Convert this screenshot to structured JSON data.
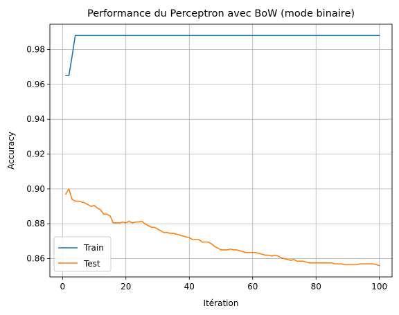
{
  "chart_data": {
    "type": "line",
    "title": "Performance du Perceptron avec BoW (mode binaire)",
    "xlabel": "Itération",
    "ylabel": "Accuracy",
    "xlim": [
      -4,
      104
    ],
    "ylim": [
      0.8495,
      0.9945
    ],
    "xticks": [
      0,
      20,
      40,
      60,
      80,
      100
    ],
    "xtick_labels": [
      "0",
      "20",
      "40",
      "60",
      "80",
      "100"
    ],
    "yticks": [
      0.86,
      0.88,
      0.9,
      0.92,
      0.94,
      0.96,
      0.98
    ],
    "ytick_labels": [
      "0.86",
      "0.88",
      "0.90",
      "0.92",
      "0.94",
      "0.96",
      "0.98"
    ],
    "grid": true,
    "legend_position": "lower-left",
    "series": [
      {
        "name": "Train",
        "color": "#1f77b4",
        "x": [
          1,
          2,
          3,
          4,
          100
        ],
        "y": [
          0.965,
          0.965,
          0.976,
          0.988,
          0.988
        ]
      },
      {
        "name": "Test",
        "color": "#ff7f0e",
        "x": [
          1,
          2,
          3,
          4,
          5,
          6,
          7,
          8,
          9,
          10,
          11,
          12,
          13,
          14,
          15,
          16,
          17,
          18,
          19,
          20,
          21,
          22,
          23,
          24,
          25,
          26,
          27,
          28,
          29,
          30,
          31,
          32,
          33,
          34,
          35,
          36,
          37,
          38,
          39,
          40,
          41,
          42,
          43,
          44,
          45,
          46,
          47,
          48,
          49,
          50,
          51,
          52,
          53,
          54,
          55,
          56,
          57,
          58,
          59,
          60,
          61,
          62,
          63,
          64,
          65,
          66,
          67,
          68,
          69,
          70,
          71,
          72,
          73,
          74,
          75,
          76,
          77,
          78,
          79,
          80,
          81,
          82,
          83,
          84,
          85,
          86,
          87,
          88,
          89,
          90,
          91,
          92,
          93,
          94,
          95,
          96,
          97,
          98,
          99,
          100
        ],
        "y": [
          0.897,
          0.9,
          0.894,
          0.893,
          0.893,
          0.8925,
          0.892,
          0.891,
          0.89,
          0.8905,
          0.889,
          0.888,
          0.8855,
          0.8855,
          0.8845,
          0.8805,
          0.8805,
          0.8805,
          0.881,
          0.8805,
          0.8815,
          0.8805,
          0.881,
          0.881,
          0.8815,
          0.88,
          0.879,
          0.878,
          0.878,
          0.877,
          0.876,
          0.875,
          0.875,
          0.8745,
          0.8745,
          0.874,
          0.8735,
          0.873,
          0.8725,
          0.872,
          0.871,
          0.871,
          0.871,
          0.8695,
          0.8695,
          0.8695,
          0.8685,
          0.867,
          0.866,
          0.865,
          0.865,
          0.865,
          0.8655,
          0.865,
          0.865,
          0.8645,
          0.864,
          0.8635,
          0.8635,
          0.8635,
          0.8635,
          0.863,
          0.8625,
          0.862,
          0.862,
          0.8615,
          0.862,
          0.8615,
          0.8605,
          0.86,
          0.8595,
          0.859,
          0.8595,
          0.8585,
          0.8585,
          0.8585,
          0.858,
          0.8575,
          0.8575,
          0.8575,
          0.8575,
          0.8575,
          0.8575,
          0.8575,
          0.8575,
          0.857,
          0.857,
          0.857,
          0.8565,
          0.8565,
          0.8565,
          0.8565,
          0.8565,
          0.857,
          0.857,
          0.857,
          0.857,
          0.857,
          0.8565,
          0.856
        ]
      }
    ]
  }
}
